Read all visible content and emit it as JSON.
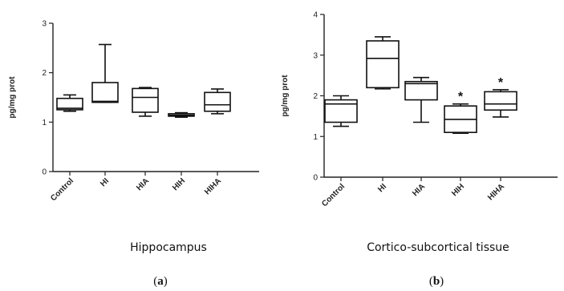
{
  "chart_data": [
    {
      "type": "box",
      "panel_label": "a",
      "caption": "Hippocampus",
      "ylabel": "pg/mg prot",
      "ylim": [
        0,
        3
      ],
      "yticks": [
        "0",
        "1",
        "2",
        "3"
      ],
      "categories": [
        "Control",
        "HI",
        "HIA",
        "HIH",
        "HIHA"
      ],
      "boxes": [
        {
          "min": 1.22,
          "q1": 1.25,
          "median": 1.28,
          "q3": 1.48,
          "max": 1.55,
          "annotation": ""
        },
        {
          "min": 1.4,
          "q1": 1.4,
          "median": 1.42,
          "q3": 1.8,
          "max": 2.57,
          "annotation": ""
        },
        {
          "min": 1.12,
          "q1": 1.2,
          "median": 1.5,
          "q3": 1.68,
          "max": 1.7,
          "annotation": ""
        },
        {
          "min": 1.1,
          "q1": 1.12,
          "median": 1.14,
          "q3": 1.17,
          "max": 1.19,
          "annotation": ""
        },
        {
          "min": 1.17,
          "q1": 1.22,
          "median": 1.35,
          "q3": 1.6,
          "max": 1.67,
          "annotation": ""
        }
      ]
    },
    {
      "type": "box",
      "panel_label": "b",
      "caption": "Cortico-subcortical tissue",
      "ylabel": "pg/mg prot",
      "ylim": [
        0,
        4
      ],
      "yticks": [
        "0",
        "1",
        "2",
        "3",
        "4"
      ],
      "categories": [
        "Control",
        "HI",
        "HIA",
        "HIH",
        "HIHA"
      ],
      "boxes": [
        {
          "min": 1.25,
          "q1": 1.35,
          "median": 1.8,
          "q3": 1.9,
          "max": 2.0,
          "annotation": ""
        },
        {
          "min": 2.17,
          "q1": 2.2,
          "median": 2.92,
          "q3": 3.35,
          "max": 3.45,
          "annotation": ""
        },
        {
          "min": 1.35,
          "q1": 1.9,
          "median": 2.3,
          "q3": 2.35,
          "max": 2.45,
          "annotation": ""
        },
        {
          "min": 1.08,
          "q1": 1.1,
          "median": 1.42,
          "q3": 1.75,
          "max": 1.8,
          "annotation": "*"
        },
        {
          "min": 1.48,
          "q1": 1.65,
          "median": 1.8,
          "q3": 2.1,
          "max": 2.15,
          "annotation": "*"
        }
      ]
    }
  ]
}
